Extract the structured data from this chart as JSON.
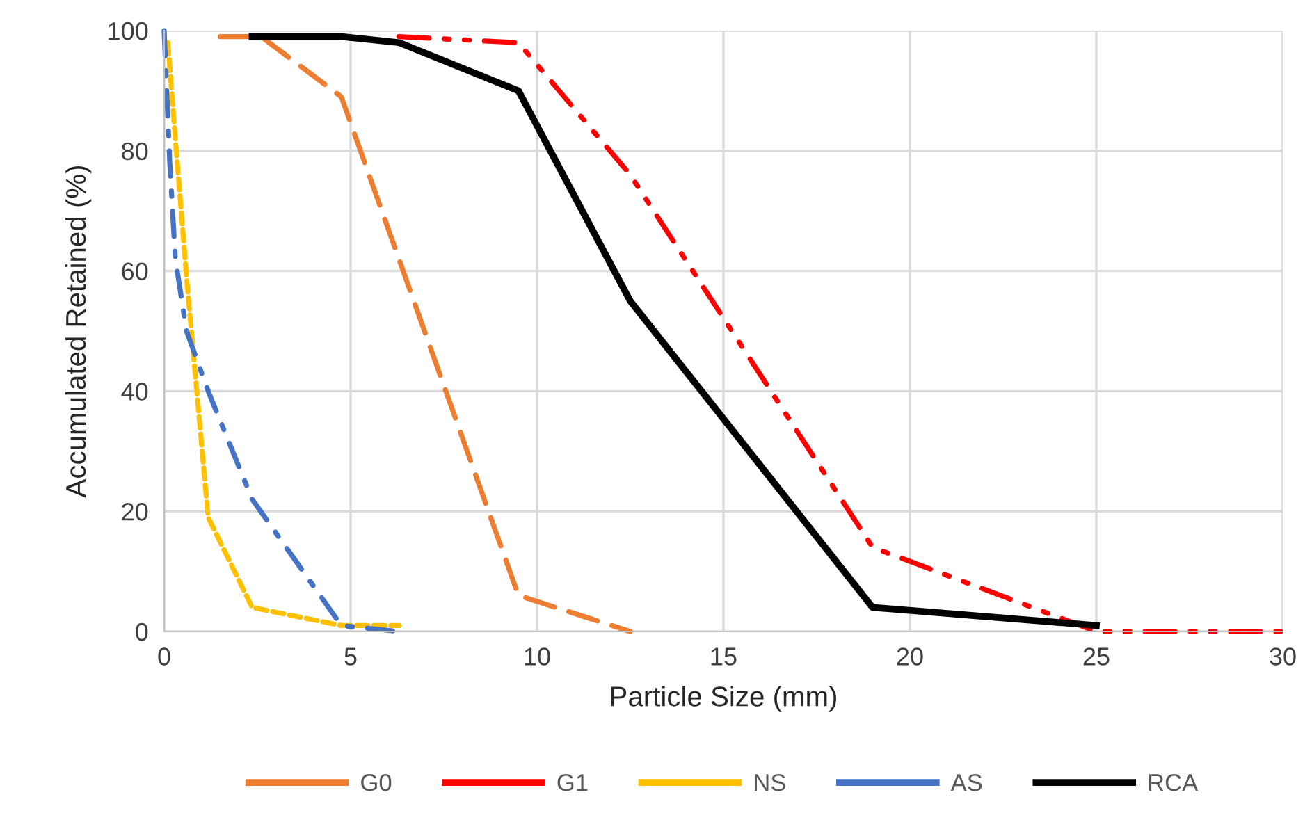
{
  "chart_data": {
    "type": "line",
    "xlabel": "Particle Size (mm)",
    "ylabel": "Accumulated Retained (%)",
    "xlim": [
      0,
      30
    ],
    "xticks": [
      0,
      5,
      10,
      15,
      20,
      25,
      30
    ],
    "ylim": [
      0,
      100
    ],
    "yticks": [
      0,
      20,
      40,
      60,
      80,
      100
    ],
    "grid": true,
    "legend": "bottom",
    "marker": "none",
    "series": [
      {
        "name": "G0",
        "color": "#ed7d31",
        "line_style": "long dashed",
        "x": [
          1.5,
          2.6,
          4.75,
          9.5,
          12.5
        ],
        "values": [
          99,
          99,
          89,
          6,
          0
        ]
      },
      {
        "name": "G1",
        "color": "#ff0000",
        "line_style": "dash dot dot",
        "x": [
          6.3,
          9.5,
          12.5,
          19,
          25,
          30
        ],
        "values": [
          99,
          98,
          76,
          14,
          0,
          0
        ]
      },
      {
        "name": "NS",
        "color": "#ffc000",
        "line_style": "dashed",
        "x": [
          0.1,
          0.3,
          0.6,
          1.18,
          2.36,
          4.75,
          6.3
        ],
        "values": [
          98,
          82,
          59,
          19,
          4,
          1,
          1
        ]
      },
      {
        "name": "AS",
        "color": "#4472c4",
        "line_style": "dash dot",
        "x": [
          0,
          0.15,
          0.3,
          0.6,
          1.18,
          2.36,
          4.75,
          6.3
        ],
        "values": [
          100,
          78,
          62,
          50,
          40,
          22,
          1,
          0
        ]
      },
      {
        "name": "RCA",
        "color": "#000000",
        "line_style": "solid",
        "x": [
          2.36,
          4.75,
          6.3,
          9.5,
          12.5,
          19,
          25
        ],
        "values": [
          99,
          99,
          98,
          90,
          55,
          4,
          1
        ]
      }
    ]
  }
}
